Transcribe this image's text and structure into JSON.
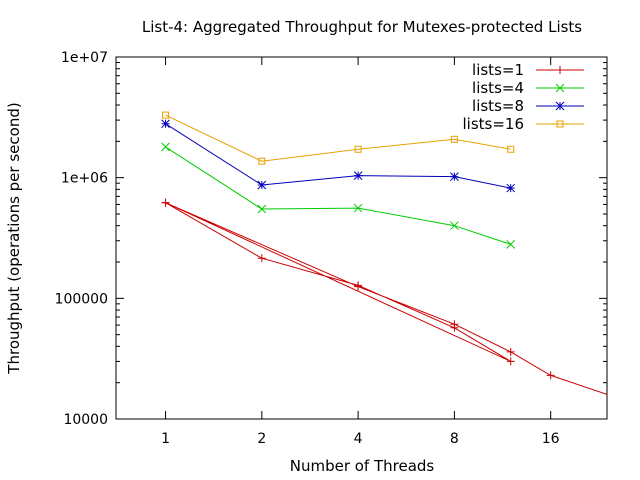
{
  "chart_data": {
    "type": "line",
    "title": "List-4: Aggregated Throughput for Mutexes-protected Lists",
    "xlabel": "Number of Threads",
    "ylabel": "Throughput (operations per second)",
    "x_scale": "log2",
    "y_scale": "log10",
    "xlim": [
      0.7,
      24
    ],
    "ylim": [
      10000,
      10000000
    ],
    "x_ticks": [
      1,
      2,
      4,
      8,
      16
    ],
    "x_tick_labels": [
      "1",
      "2",
      "4",
      "8",
      "16"
    ],
    "y_ticks": [
      10000,
      100000,
      1000000,
      10000000
    ],
    "y_tick_labels": [
      "10000",
      "100000",
      "1e+06",
      "1e+07"
    ],
    "legend_position": "top-right",
    "grid": false,
    "series": [
      {
        "name": "lists=1",
        "color": "#cc0000",
        "marker": "plus",
        "x": [
          1,
          2,
          4,
          8,
          12,
          1,
          4,
          8,
          12,
          16,
          24
        ],
        "y": [
          620000,
          215000,
          128000,
          57000,
          30000,
          620000,
          125000,
          61000,
          36000,
          23000,
          16000
        ]
      },
      {
        "name": "lists=4",
        "color": "#00cc00",
        "marker": "cross",
        "x": [
          1,
          2,
          4,
          8,
          12
        ],
        "y": [
          1800000,
          550000,
          560000,
          400000,
          280000
        ]
      },
      {
        "name": "lists=8",
        "color": "#0000bb",
        "marker": "star",
        "x": [
          1,
          2,
          4,
          8,
          12
        ],
        "y": [
          2800000,
          870000,
          1040000,
          1020000,
          820000
        ]
      },
      {
        "name": "lists=16",
        "color": "#e8a000",
        "marker": "square",
        "x": [
          1,
          2,
          4,
          8,
          12
        ],
        "y": [
          3300000,
          1370000,
          1720000,
          2080000,
          1720000
        ]
      }
    ]
  }
}
